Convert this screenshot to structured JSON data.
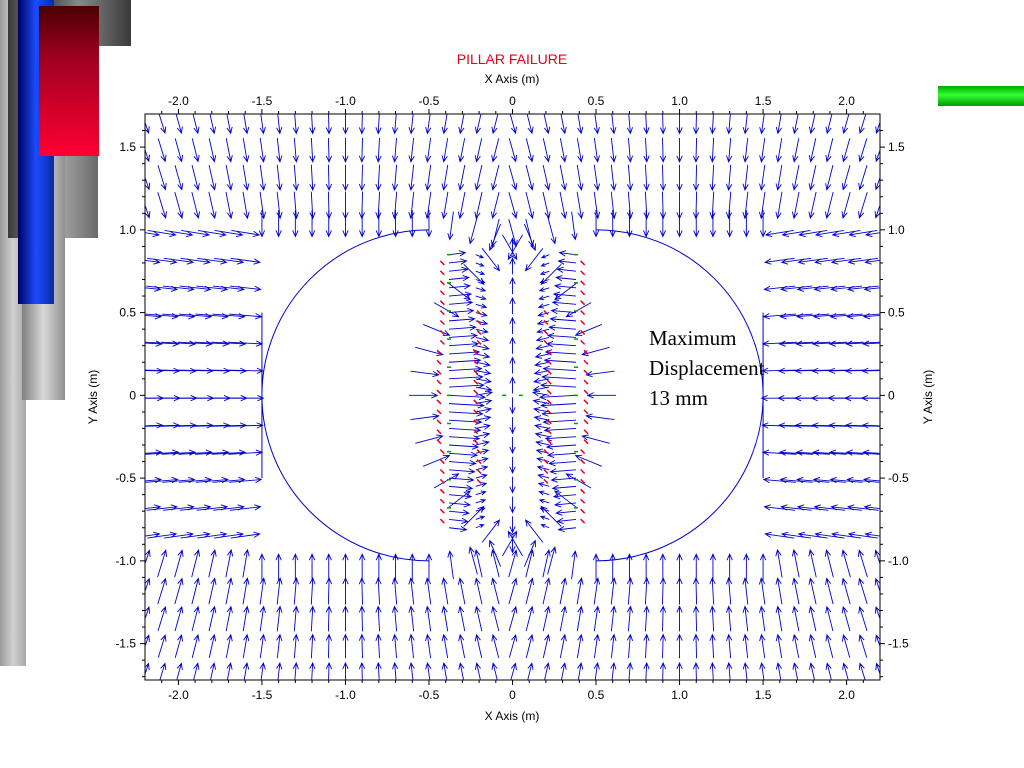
{
  "colors": {
    "title": "#e8001c",
    "vectors": "#0000cc",
    "failed_marks": "#e8001c",
    "yield_marks": "#00a000",
    "accent_bar": "#00cc00"
  },
  "chart_data": {
    "type": "vector-field",
    "title": "PILLAR FAILURE",
    "xlabel": "X Axis (m)",
    "ylabel": "Y Axis (m)",
    "xlim": [
      -2.2,
      2.2
    ],
    "ylim": [
      -1.72,
      1.7
    ],
    "xticks": [
      "-2.0",
      "-1.5",
      "-1.0",
      "-0.5",
      "0",
      "0.5",
      "1.0",
      "1.5",
      "2.0"
    ],
    "xtick_values": [
      -2.0,
      -1.5,
      -1.0,
      -0.5,
      0,
      0.5,
      1.0,
      1.5,
      2.0
    ],
    "yticks": [
      "1.5",
      "1.0",
      "0.5",
      "0",
      "-0.5",
      "-1.0",
      "-1.5"
    ],
    "ytick_values": [
      1.5,
      1.0,
      0.5,
      0,
      -0.5,
      -1.0,
      -1.5
    ],
    "grid": false,
    "openings": [
      {
        "name": "left-opening",
        "center_x": -1.0,
        "half_width": 0.5,
        "radius": 1.0
      },
      {
        "name": "right-opening",
        "center_x": 1.0,
        "half_width": 0.5,
        "radius": 1.0
      }
    ],
    "pillar": {
      "x_min": -0.5,
      "x_max": 0.5
    },
    "annotation": [
      "Maximum",
      "Displacement",
      "13 mm"
    ],
    "max_displacement_mm": 13
  }
}
